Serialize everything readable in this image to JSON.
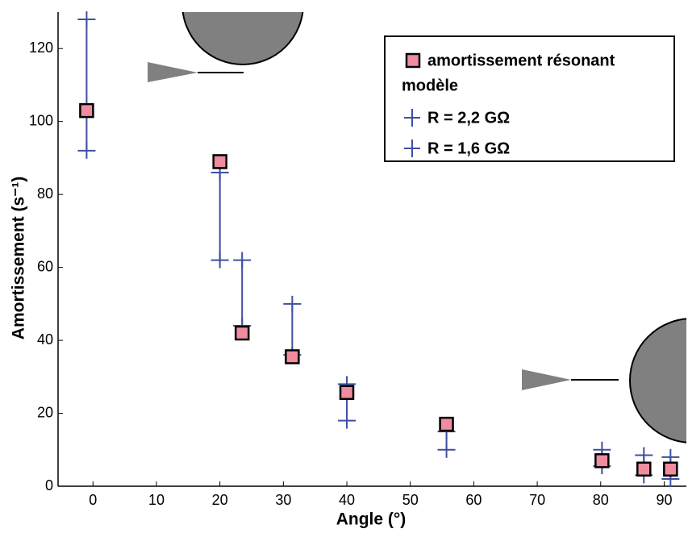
{
  "chart_data": {
    "type": "scatter",
    "x_label": "Angle (°)",
    "y_label": "Amortissement (s⁻¹)",
    "xlim": [
      -5.5,
      93.5
    ],
    "ylim": [
      0,
      130
    ],
    "xticks": [
      0,
      10,
      20,
      30,
      40,
      50,
      60,
      70,
      80,
      90
    ],
    "yticks": [
      0,
      20,
      40,
      60,
      80,
      100,
      120
    ],
    "legend_group_label": "modèle",
    "series": [
      {
        "name": "amortissement résonant",
        "color": "#f08ca0",
        "marker": "square",
        "x": [
          -1,
          20,
          23.5,
          31.4,
          40,
          55.7,
          80.2,
          86.8,
          91
        ],
        "values": [
          103,
          89,
          42,
          35.5,
          25.7,
          17,
          7,
          4.7,
          4.7
        ]
      },
      {
        "name": "R = 2,2 GΩ",
        "color": "#3f4fa0",
        "marker": "cross",
        "x": [
          -1,
          20,
          23.5,
          31.4,
          40,
          55.7,
          80.2,
          86.8,
          91
        ],
        "values": [
          128,
          86,
          62,
          50,
          28,
          15,
          10,
          8.5,
          8
        ]
      },
      {
        "name": "R = 1,6 GΩ",
        "color": "#3f4fa0",
        "marker": "cross",
        "x": [
          -1,
          20,
          23.5,
          31.4,
          40,
          55.7,
          80.2,
          86.8,
          91
        ],
        "values": [
          92,
          62,
          44,
          36,
          18,
          10,
          5.5,
          3,
          2
        ]
      }
    ]
  }
}
